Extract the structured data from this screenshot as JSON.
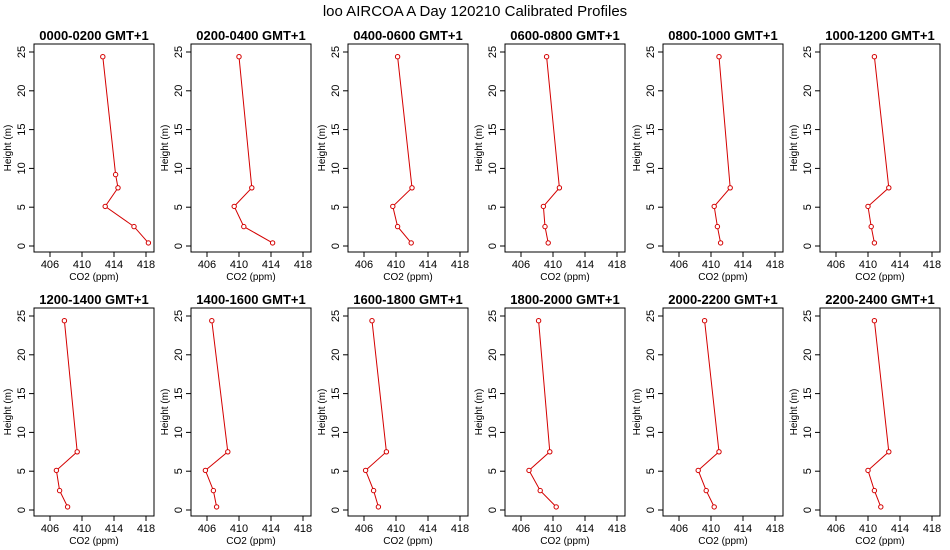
{
  "figure": {
    "title": "loo AIRCOA A  Day 120210  Calibrated Profiles",
    "line_color": "#d40000",
    "background": "#ffffff"
  },
  "chart_data": [
    {
      "type": "line",
      "title": "0000-0200 GMT+1",
      "xlabel": "CO2 (ppm)",
      "ylabel": "Height (m)",
      "xlim": [
        404,
        419
      ],
      "ylim": [
        0,
        25
      ],
      "xticks": [
        "406",
        "410",
        "414",
        "418"
      ],
      "yticks": [
        "0",
        "5",
        "10",
        "15",
        "20",
        "25"
      ],
      "series": [
        {
          "x": [
            412.6,
            414.2,
            414.5,
            412.9,
            416.5,
            418.3
          ],
          "y": [
            24.4,
            9.2,
            7.5,
            5.1,
            2.5,
            0.4
          ]
        }
      ]
    },
    {
      "type": "line",
      "title": "0200-0400 GMT+1",
      "xlabel": "CO2 (ppm)",
      "ylabel": "Height (m)",
      "xlim": [
        404,
        419
      ],
      "ylim": [
        0,
        25
      ],
      "xticks": [
        "406",
        "410",
        "414",
        "418"
      ],
      "yticks": [
        "0",
        "5",
        "10",
        "15",
        "20",
        "25"
      ],
      "series": [
        {
          "x": [
            410.0,
            411.6,
            409.4,
            410.6,
            414.2
          ],
          "y": [
            24.4,
            7.5,
            5.1,
            2.5,
            0.4
          ]
        }
      ]
    },
    {
      "type": "line",
      "title": "0400-0600 GMT+1",
      "xlabel": "CO2 (ppm)",
      "ylabel": "Height (m)",
      "xlim": [
        404,
        419
      ],
      "ylim": [
        0,
        25
      ],
      "xticks": [
        "406",
        "410",
        "414",
        "418"
      ],
      "yticks": [
        "0",
        "5",
        "10",
        "15",
        "20",
        "25"
      ],
      "series": [
        {
          "x": [
            410.2,
            412.0,
            409.6,
            410.2,
            411.9
          ],
          "y": [
            24.4,
            7.5,
            5.1,
            2.5,
            0.4
          ]
        }
      ]
    },
    {
      "type": "line",
      "title": "0600-0800 GMT+1",
      "xlabel": "CO2 (ppm)",
      "ylabel": "Height (m)",
      "xlim": [
        404,
        419
      ],
      "ylim": [
        0,
        25
      ],
      "xticks": [
        "406",
        "410",
        "414",
        "418"
      ],
      "yticks": [
        "0",
        "5",
        "10",
        "15",
        "20",
        "25"
      ],
      "series": [
        {
          "x": [
            409.2,
            410.8,
            408.8,
            409.0,
            409.4
          ],
          "y": [
            24.4,
            7.5,
            5.1,
            2.5,
            0.4
          ]
        }
      ]
    },
    {
      "type": "line",
      "title": "0800-1000 GMT+1",
      "xlabel": "CO2 (ppm)",
      "ylabel": "Height (m)",
      "xlim": [
        404,
        419
      ],
      "ylim": [
        0,
        25
      ],
      "xticks": [
        "406",
        "410",
        "414",
        "418"
      ],
      "yticks": [
        "0",
        "5",
        "10",
        "15",
        "20",
        "25"
      ],
      "series": [
        {
          "x": [
            411.0,
            412.4,
            410.4,
            410.8,
            411.2
          ],
          "y": [
            24.4,
            7.5,
            5.1,
            2.5,
            0.4
          ]
        }
      ]
    },
    {
      "type": "line",
      "title": "1000-1200 GMT+1",
      "xlabel": "CO2 (ppm)",
      "ylabel": "Height (m)",
      "xlim": [
        404,
        419
      ],
      "ylim": [
        0,
        25
      ],
      "xticks": [
        "406",
        "410",
        "414",
        "418"
      ],
      "yticks": [
        "0",
        "5",
        "10",
        "15",
        "20",
        "25"
      ],
      "series": [
        {
          "x": [
            410.8,
            412.6,
            410.0,
            410.4,
            410.8
          ],
          "y": [
            24.4,
            7.5,
            5.1,
            2.5,
            0.4
          ]
        }
      ]
    },
    {
      "type": "line",
      "title": "1200-1400 GMT+1",
      "xlabel": "CO2 (ppm)",
      "ylabel": "Height (m)",
      "xlim": [
        404,
        419
      ],
      "ylim": [
        0,
        25
      ],
      "xticks": [
        "406",
        "410",
        "414",
        "418"
      ],
      "yticks": [
        "0",
        "5",
        "10",
        "15",
        "20",
        "25"
      ],
      "series": [
        {
          "x": [
            407.8,
            409.4,
            406.8,
            407.2,
            408.2
          ],
          "y": [
            24.4,
            7.5,
            5.1,
            2.5,
            0.4
          ]
        }
      ]
    },
    {
      "type": "line",
      "title": "1400-1600 GMT+1",
      "xlabel": "CO2 (ppm)",
      "ylabel": "Height (m)",
      "xlim": [
        404,
        419
      ],
      "ylim": [
        0,
        25
      ],
      "xticks": [
        "406",
        "410",
        "414",
        "418"
      ],
      "yticks": [
        "0",
        "5",
        "10",
        "15",
        "20",
        "25"
      ],
      "series": [
        {
          "x": [
            406.6,
            408.6,
            405.8,
            406.8,
            407.2
          ],
          "y": [
            24.4,
            7.5,
            5.1,
            2.5,
            0.4
          ]
        }
      ]
    },
    {
      "type": "line",
      "title": "1600-1800 GMT+1",
      "xlabel": "CO2 (ppm)",
      "ylabel": "Height (m)",
      "xlim": [
        404,
        419
      ],
      "ylim": [
        0,
        25
      ],
      "xticks": [
        "406",
        "410",
        "414",
        "418"
      ],
      "yticks": [
        "0",
        "5",
        "10",
        "15",
        "20",
        "25"
      ],
      "series": [
        {
          "x": [
            407.0,
            408.8,
            406.2,
            407.2,
            407.8
          ],
          "y": [
            24.4,
            7.5,
            5.1,
            2.5,
            0.4
          ]
        }
      ]
    },
    {
      "type": "line",
      "title": "1800-2000 GMT+1",
      "xlabel": "CO2 (ppm)",
      "ylabel": "Height (m)",
      "xlim": [
        404,
        419
      ],
      "ylim": [
        0,
        25
      ],
      "xticks": [
        "406",
        "410",
        "414",
        "418"
      ],
      "yticks": [
        "0",
        "5",
        "10",
        "15",
        "20",
        "25"
      ],
      "series": [
        {
          "x": [
            408.2,
            409.6,
            407.0,
            408.4,
            410.4
          ],
          "y": [
            24.4,
            7.5,
            5.1,
            2.5,
            0.4
          ]
        }
      ]
    },
    {
      "type": "line",
      "title": "2000-2200 GMT+1",
      "xlabel": "CO2 (ppm)",
      "ylabel": "Height (m)",
      "xlim": [
        404,
        419
      ],
      "ylim": [
        0,
        25
      ],
      "xticks": [
        "406",
        "410",
        "414",
        "418"
      ],
      "yticks": [
        "0",
        "5",
        "10",
        "15",
        "20",
        "25"
      ],
      "series": [
        {
          "x": [
            409.2,
            411.0,
            408.4,
            409.4,
            410.4
          ],
          "y": [
            24.4,
            7.5,
            5.1,
            2.5,
            0.4
          ]
        }
      ]
    },
    {
      "type": "line",
      "title": "2200-2400 GMT+1",
      "xlabel": "CO2 (ppm)",
      "ylabel": "Height (m)",
      "xlim": [
        404,
        419
      ],
      "ylim": [
        0,
        25
      ],
      "xticks": [
        "406",
        "410",
        "414",
        "418"
      ],
      "yticks": [
        "0",
        "5",
        "10",
        "15",
        "20",
        "25"
      ],
      "series": [
        {
          "x": [
            410.8,
            412.6,
            410.0,
            410.8,
            411.6
          ],
          "y": [
            24.4,
            7.5,
            5.1,
            2.5,
            0.4
          ]
        }
      ]
    }
  ]
}
